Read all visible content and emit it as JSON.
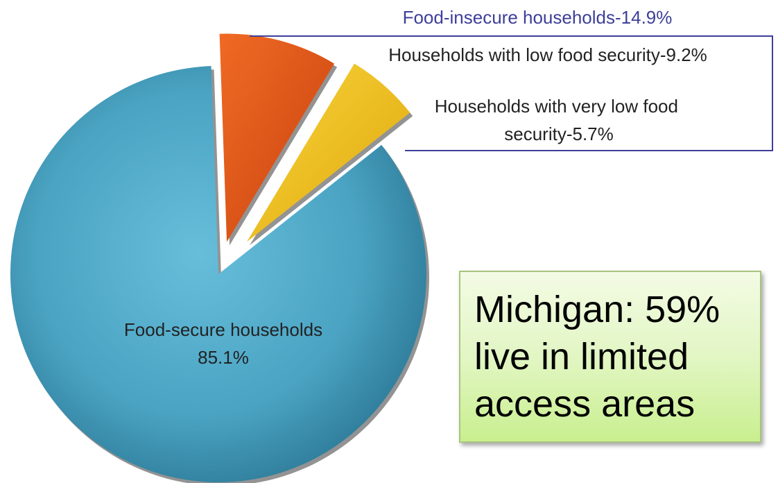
{
  "chart_data": {
    "type": "pie",
    "title": "",
    "slices": [
      {
        "label": "Food-secure households",
        "value_label": "85.1%",
        "value": 85.1,
        "color": "#4aa3c2",
        "exploded": false
      },
      {
        "label": "Households with low food security-9.2%",
        "value": 9.2,
        "color": "#e4571a",
        "exploded": true
      },
      {
        "label": "Households with very low food security-5.7%",
        "value": 5.7,
        "color": "#f2c41f",
        "exploded": true
      }
    ],
    "group_label": "Food-insecure households-14.9%",
    "group_value": 14.9,
    "group_color": "#3d3f99"
  },
  "callout": {
    "text": "Michigan: 59%\nlive in limited\naccess areas"
  }
}
